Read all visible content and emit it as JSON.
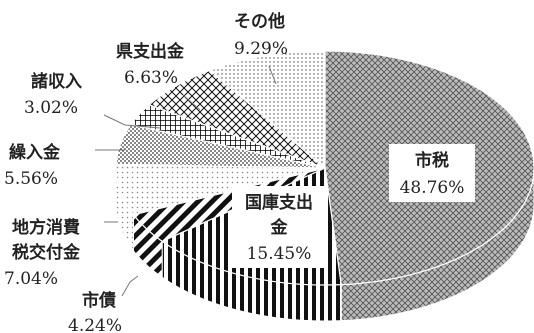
{
  "chart_data": {
    "type": "pie",
    "title": "",
    "three_d": true,
    "slices": [
      {
        "name": "市税",
        "value": 48.76,
        "pct": "48.76%",
        "pattern": "diamond-fine"
      },
      {
        "name": "国庫支出金",
        "value": 15.45,
        "pct": "15.45%",
        "pattern": "vertical-stripes"
      },
      {
        "name": "市債",
        "value": 4.24,
        "pct": "4.24%",
        "pattern": "diagonal-stripes"
      },
      {
        "name": "地方消費税交付金",
        "value": 7.04,
        "pct": "7.04%",
        "pattern": "light-dots"
      },
      {
        "name": "繰入金",
        "value": 5.56,
        "pct": "5.56%",
        "pattern": "dense-dots"
      },
      {
        "name": "諸収入",
        "value": 3.02,
        "pct": "3.02%",
        "pattern": "grid"
      },
      {
        "name": "県支出金",
        "value": 6.63,
        "pct": "6.63%",
        "pattern": "diagonal-cross"
      },
      {
        "name": "その他",
        "value": 9.29,
        "pct": "9.29%",
        "pattern": "small-dots"
      }
    ]
  },
  "labels": {
    "shiZei": {
      "name": "市税",
      "pct": "48.76%"
    },
    "kokko": {
      "name1": "国庫支出",
      "name2": "金",
      "pct": "15.45%"
    },
    "shisai": {
      "name": "市債",
      "pct": "4.24%"
    },
    "chihou": {
      "name1": "地方消費",
      "name2": "税交付金",
      "pct": "7.04%"
    },
    "kurire": {
      "name": "繰入金",
      "pct": "5.56%"
    },
    "shoshu": {
      "name": "諸収入",
      "pct": "3.02%"
    },
    "ken": {
      "name": "県支出金",
      "pct": "6.63%"
    },
    "sonota": {
      "name": "その他",
      "pct": "9.29%"
    }
  }
}
